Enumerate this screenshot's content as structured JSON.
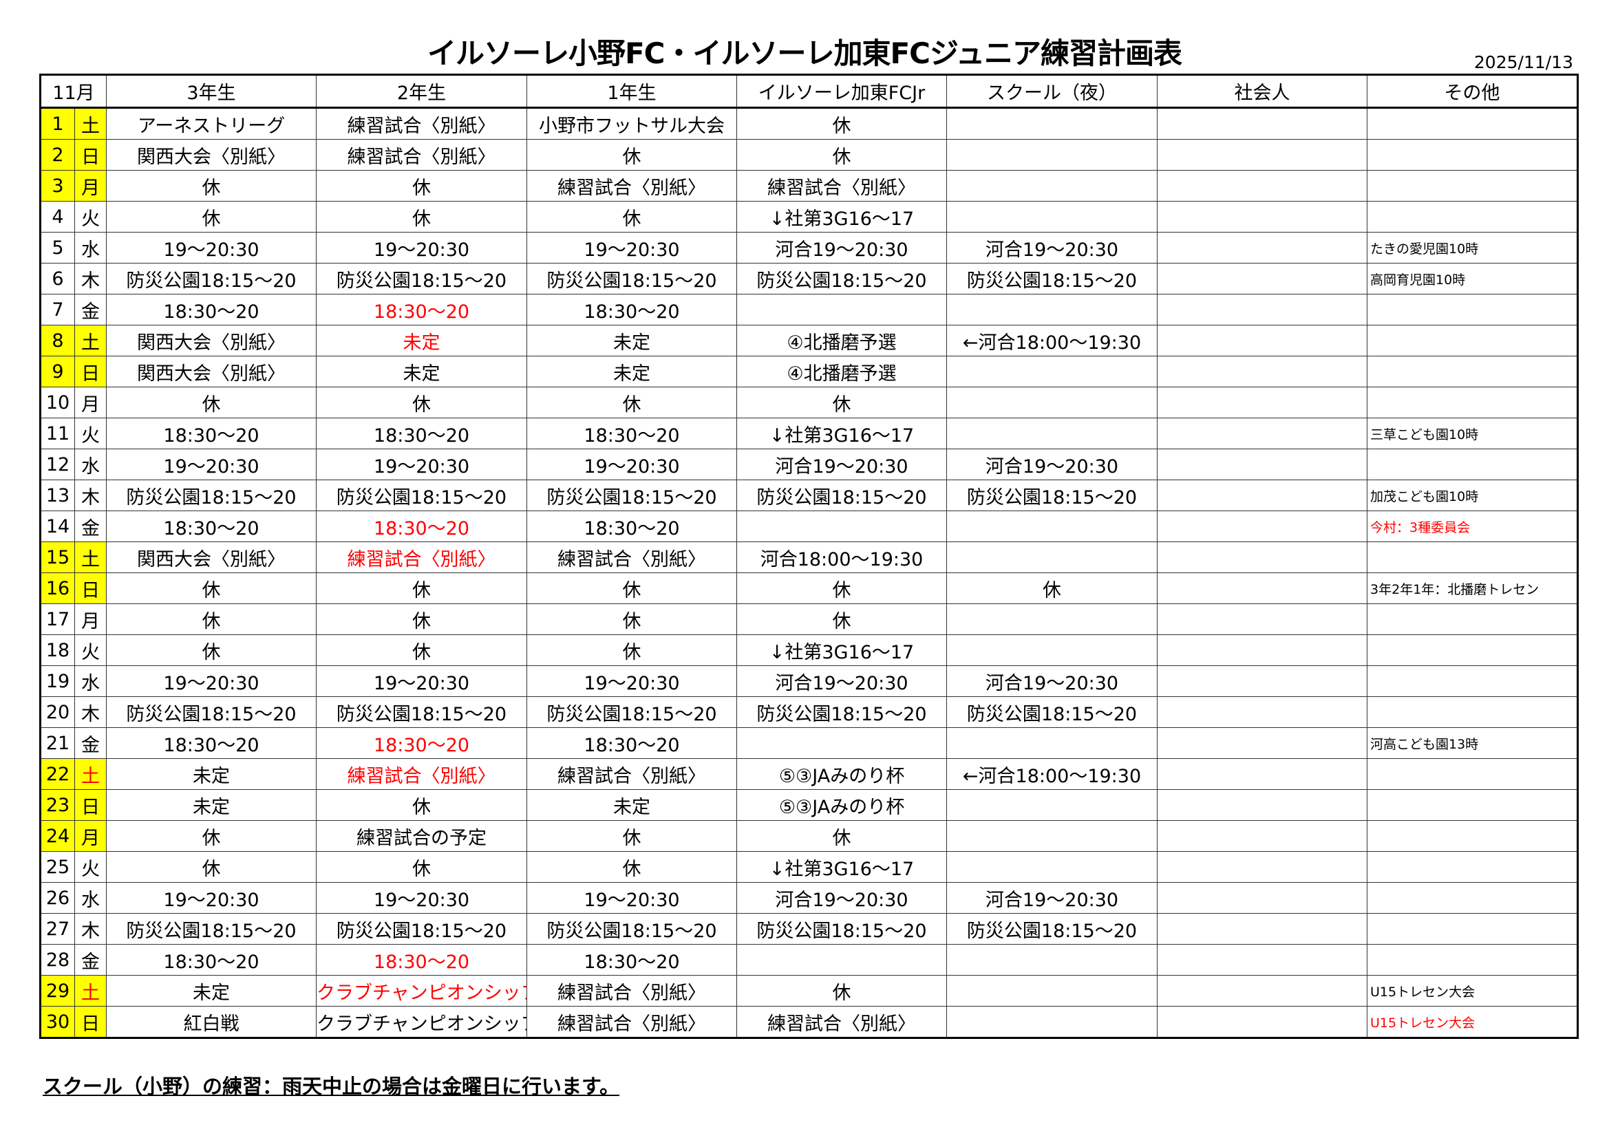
{
  "title": "イルソーレ小野FC・イルソーレ加東FCジュニア練習計画表",
  "date": "2025/11/13",
  "colors": {
    "highlight": "#ffff00",
    "red": "#ff0000"
  },
  "headers": [
    "11月",
    "3年生",
    "2年生",
    "1年生",
    "イルソーレ加東FCJr",
    "スクール（夜）",
    "社会人",
    "その他"
  ],
  "rows": [
    {
      "day": "1",
      "dow": "土",
      "hl": true,
      "dow_red": false,
      "cells": [
        "アーネストリーグ",
        "練習試合〈別紙〉",
        "小野市フットサル大会",
        "休",
        "",
        "",
        ""
      ],
      "red": []
    },
    {
      "day": "2",
      "dow": "日",
      "hl": true,
      "dow_red": false,
      "cells": [
        "関西大会〈別紙〉",
        "練習試合〈別紙〉",
        "休",
        "休",
        "",
        "",
        ""
      ],
      "red": []
    },
    {
      "day": "3",
      "dow": "月",
      "hl": true,
      "dow_red": false,
      "cells": [
        "休",
        "休",
        "練習試合〈別紙〉",
        "練習試合〈別紙〉",
        "",
        "",
        ""
      ],
      "red": []
    },
    {
      "day": "4",
      "dow": "火",
      "hl": false,
      "dow_red": false,
      "cells": [
        "休",
        "休",
        "休",
        "↓社第3G16～17",
        "",
        "",
        ""
      ],
      "red": []
    },
    {
      "day": "5",
      "dow": "水",
      "hl": false,
      "dow_red": false,
      "cells": [
        "19～20:30",
        "19～20:30",
        "19～20:30",
        "河合19～20:30",
        "河合19～20:30",
        "",
        "たきの愛児園10時"
      ],
      "red": []
    },
    {
      "day": "6",
      "dow": "木",
      "hl": false,
      "dow_red": false,
      "cells": [
        "防災公園18:15～20",
        "防災公園18:15～20",
        "防災公園18:15～20",
        "防災公園18:15～20",
        "防災公園18:15～20",
        "",
        "高岡育児園10時"
      ],
      "red": []
    },
    {
      "day": "7",
      "dow": "金",
      "hl": false,
      "dow_red": false,
      "cells": [
        "18:30～20",
        "18:30～20",
        "18:30～20",
        "",
        "",
        "",
        ""
      ],
      "red": [
        1
      ]
    },
    {
      "day": "8",
      "dow": "土",
      "hl": true,
      "dow_red": false,
      "cells": [
        "関西大会〈別紙〉",
        "未定",
        "未定",
        "④北播磨予選",
        "←河合18:00～19:30",
        "",
        ""
      ],
      "red": [
        1
      ]
    },
    {
      "day": "9",
      "dow": "日",
      "hl": true,
      "dow_red": false,
      "cells": [
        "関西大会〈別紙〉",
        "未定",
        "未定",
        "④北播磨予選",
        "",
        "",
        ""
      ],
      "red": []
    },
    {
      "day": "10",
      "dow": "月",
      "hl": false,
      "dow_red": false,
      "cells": [
        "休",
        "休",
        "休",
        "休",
        "",
        "",
        ""
      ],
      "red": []
    },
    {
      "day": "11",
      "dow": "火",
      "hl": false,
      "dow_red": false,
      "cells": [
        "18:30～20",
        "18:30～20",
        "18:30～20",
        "↓社第3G16～17",
        "",
        "",
        "三草こども園10時"
      ],
      "red": []
    },
    {
      "day": "12",
      "dow": "水",
      "hl": false,
      "dow_red": false,
      "cells": [
        "19～20:30",
        "19～20:30",
        "19～20:30",
        "河合19～20:30",
        "河合19～20:30",
        "",
        ""
      ],
      "red": []
    },
    {
      "day": "13",
      "dow": "木",
      "hl": false,
      "dow_red": false,
      "cells": [
        "防災公園18:15～20",
        "防災公園18:15～20",
        "防災公園18:15～20",
        "防災公園18:15～20",
        "防災公園18:15～20",
        "",
        "加茂こども園10時"
      ],
      "red": []
    },
    {
      "day": "14",
      "dow": "金",
      "hl": false,
      "dow_red": false,
      "cells": [
        "18:30～20",
        "18:30～20",
        "18:30～20",
        "",
        "",
        "",
        "今村：3種委員会"
      ],
      "red": [
        1,
        6
      ]
    },
    {
      "day": "15",
      "dow": "土",
      "hl": true,
      "dow_red": false,
      "cells": [
        "関西大会〈別紙〉",
        "練習試合〈別紙〉",
        "練習試合〈別紙〉",
        "河合18:00～19:30",
        "",
        "",
        ""
      ],
      "red": [
        1
      ]
    },
    {
      "day": "16",
      "dow": "日",
      "hl": true,
      "dow_red": false,
      "cells": [
        "休",
        "休",
        "休",
        "休",
        "休",
        "",
        "3年2年1年：北播磨トレセン"
      ],
      "red": []
    },
    {
      "day": "17",
      "dow": "月",
      "hl": false,
      "dow_red": false,
      "cells": [
        "休",
        "休",
        "休",
        "休",
        "",
        "",
        ""
      ],
      "red": []
    },
    {
      "day": "18",
      "dow": "火",
      "hl": false,
      "dow_red": false,
      "cells": [
        "休",
        "休",
        "休",
        "↓社第3G16～17",
        "",
        "",
        ""
      ],
      "red": []
    },
    {
      "day": "19",
      "dow": "水",
      "hl": false,
      "dow_red": false,
      "cells": [
        "19～20:30",
        "19～20:30",
        "19～20:30",
        "河合19～20:30",
        "河合19～20:30",
        "",
        ""
      ],
      "red": []
    },
    {
      "day": "20",
      "dow": "木",
      "hl": false,
      "dow_red": false,
      "cells": [
        "防災公園18:15～20",
        "防災公園18:15～20",
        "防災公園18:15～20",
        "防災公園18:15～20",
        "防災公園18:15～20",
        "",
        ""
      ],
      "red": []
    },
    {
      "day": "21",
      "dow": "金",
      "hl": false,
      "dow_red": false,
      "cells": [
        "18:30～20",
        "18:30～20",
        "18:30～20",
        "",
        "",
        "",
        "河高こども園13時"
      ],
      "red": [
        1
      ]
    },
    {
      "day": "22",
      "dow": "土",
      "hl": true,
      "dow_red": true,
      "cells": [
        "未定",
        "練習試合〈別紙〉",
        "練習試合〈別紙〉",
        "⑤③JAみのり杯",
        "←河合18:00～19:30",
        "",
        ""
      ],
      "red": [
        1
      ]
    },
    {
      "day": "23",
      "dow": "日",
      "hl": true,
      "dow_red": false,
      "cells": [
        "未定",
        "休",
        "未定",
        "⑤③JAみのり杯",
        "",
        "",
        ""
      ],
      "red": []
    },
    {
      "day": "24",
      "dow": "月",
      "hl": true,
      "dow_red": false,
      "cells": [
        "休",
        "練習試合の予定",
        "休",
        "休",
        "",
        "",
        ""
      ],
      "red": []
    },
    {
      "day": "25",
      "dow": "火",
      "hl": false,
      "dow_red": false,
      "cells": [
        "休",
        "休",
        "休",
        "↓社第3G16～17",
        "",
        "",
        ""
      ],
      "red": []
    },
    {
      "day": "26",
      "dow": "水",
      "hl": false,
      "dow_red": false,
      "cells": [
        "19～20:30",
        "19～20:30",
        "19～20:30",
        "河合19～20:30",
        "河合19～20:30",
        "",
        ""
      ],
      "red": []
    },
    {
      "day": "27",
      "dow": "木",
      "hl": false,
      "dow_red": false,
      "cells": [
        "防災公園18:15～20",
        "防災公園18:15～20",
        "防災公園18:15～20",
        "防災公園18:15～20",
        "防災公園18:15～20",
        "",
        ""
      ],
      "red": []
    },
    {
      "day": "28",
      "dow": "金",
      "hl": false,
      "dow_red": false,
      "cells": [
        "18:30～20",
        "18:30～20",
        "18:30～20",
        "",
        "",
        "",
        ""
      ],
      "red": [
        1
      ]
    },
    {
      "day": "29",
      "dow": "土",
      "hl": true,
      "dow_red": true,
      "cells": [
        "未定",
        "クラブチャンピオンシップ",
        "練習試合〈別紙〉",
        "休",
        "",
        "",
        "U15トレセン大会"
      ],
      "red": [
        1
      ]
    },
    {
      "day": "30",
      "dow": "日",
      "hl": true,
      "dow_red": false,
      "cells": [
        "紅白戦",
        "クラブチャンピオンシップ",
        "練習試合〈別紙〉",
        "練習試合〈別紙〉",
        "",
        "",
        "U15トレセン大会"
      ],
      "red": [
        6
      ]
    }
  ],
  "note": "スクール（小野）の練習：雨天中止の場合は金曜日に行います。"
}
